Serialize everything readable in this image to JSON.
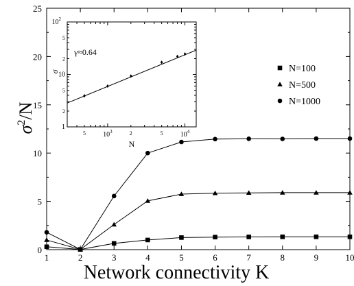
{
  "chart_data": [
    {
      "type": "line",
      "xlabel": "Network connectivity K",
      "ylabel_main": "σ",
      "ylabel_sup": "2",
      "ylabel_rest": "/N",
      "xlim": [
        1,
        10
      ],
      "ylim": [
        0,
        25
      ],
      "x_ticks": [
        1,
        2,
        3,
        4,
        5,
        6,
        7,
        8,
        9,
        10
      ],
      "y_ticks": [
        0,
        5,
        10,
        15,
        20,
        25
      ],
      "grid": false,
      "legend_position": "right",
      "series": [
        {
          "name": "N=100",
          "marker": "square",
          "x": [
            1,
            2,
            3,
            4,
            5,
            6,
            7,
            8,
            9,
            10
          ],
          "y": [
            0.3,
            0.02,
            0.65,
            1.0,
            1.25,
            1.3,
            1.32,
            1.33,
            1.33,
            1.33
          ]
        },
        {
          "name": "N=500",
          "marker": "triangle",
          "x": [
            1,
            2,
            3,
            4,
            5,
            6,
            7,
            8,
            9,
            10
          ],
          "y": [
            1.0,
            0.02,
            2.6,
            5.05,
            5.75,
            5.85,
            5.88,
            5.9,
            5.9,
            5.9
          ]
        },
        {
          "name": "N=1000",
          "marker": "circle",
          "x": [
            1,
            2,
            3,
            4,
            5,
            6,
            7,
            8,
            9,
            10
          ],
          "y": [
            1.8,
            0.02,
            5.55,
            10.0,
            11.15,
            11.45,
            11.48,
            11.47,
            11.5,
            11.5
          ]
        }
      ]
    },
    {
      "type": "scatter",
      "xlabel": "N",
      "ylabel": "σ",
      "xscale": "log",
      "yscale": "log",
      "xlim": [
        300,
        14000
      ],
      "ylim": [
        1,
        100
      ],
      "x_major_ticks": [
        {
          "value": 1000,
          "base": "10",
          "exp": "3"
        },
        {
          "value": 10000,
          "base": "10",
          "exp": "4"
        }
      ],
      "x_minor_labels": [
        {
          "value": 500,
          "label": "5"
        },
        {
          "value": 2000,
          "label": "2"
        },
        {
          "value": 5000,
          "label": "5"
        }
      ],
      "y_major_ticks": [
        {
          "value": 1,
          "label": "1"
        },
        {
          "value": 10,
          "label": "10"
        },
        {
          "value": 100,
          "base": "10",
          "exp": "2"
        }
      ],
      "y_minor_labels": [
        {
          "value": 2,
          "label": "2"
        },
        {
          "value": 5,
          "label": "5"
        },
        {
          "value": 20,
          "label": "2"
        },
        {
          "value": 50,
          "label": "5"
        }
      ],
      "annotation": "γ≈0.64",
      "points": [
        {
          "x": 500,
          "y": 3.9
        },
        {
          "x": 1000,
          "y": 6.0
        },
        {
          "x": 2000,
          "y": 9.3
        },
        {
          "x": 5000,
          "y": 17.0
        },
        {
          "x": 8000,
          "y": 22.0
        },
        {
          "x": 10000,
          "y": 24.5
        }
      ],
      "fit_line": {
        "x": [
          300,
          14000
        ],
        "y": [
          2.85,
          29.0
        ]
      }
    }
  ]
}
